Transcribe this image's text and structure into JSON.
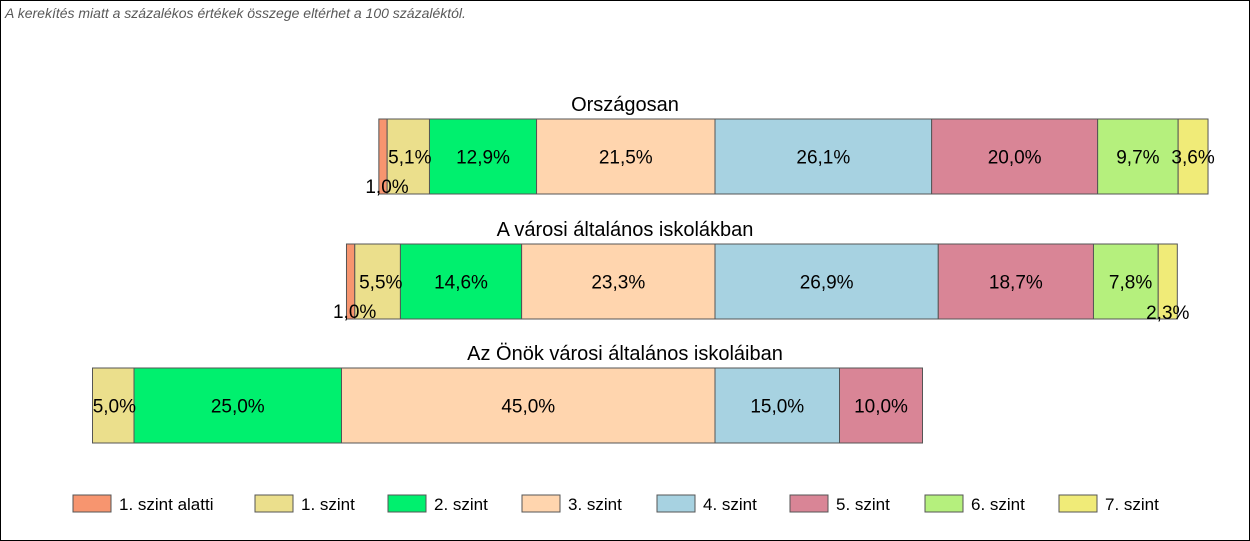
{
  "note": "A kerekítés miatt a százalékos értékek összege eltérhet a 100 százaléktól.",
  "chart_data": {
    "type": "bar",
    "stacked": true,
    "orientation": "horizontal",
    "centered_on": "2. szint / 3. szint",
    "levels": [
      {
        "name": "1. szint alatti",
        "color": "#F7956F"
      },
      {
        "name": "1. szint",
        "color": "#EBDF8C"
      },
      {
        "name": "2. szint",
        "color": "#00F06E"
      },
      {
        "name": "3. szint",
        "color": "#FFD5AE"
      },
      {
        "name": "4. szint",
        "color": "#A7D2E1"
      },
      {
        "name": "5. szint",
        "color": "#D98596"
      },
      {
        "name": "6. szint",
        "color": "#B5F07D"
      },
      {
        "name": "7. szint",
        "color": "#F0EB78"
      }
    ],
    "categories": [
      {
        "title": "Országosan",
        "values": [
          1.0,
          5.1,
          12.9,
          21.5,
          26.1,
          20.0,
          9.7,
          3.6
        ],
        "labels": [
          "1,0%",
          "5,1%",
          "12,9%",
          "21,5%",
          "26,1%",
          "20,0%",
          "9,7%",
          "3,6%"
        ]
      },
      {
        "title": "A városi általános iskolákban",
        "values": [
          1.0,
          5.5,
          14.6,
          23.3,
          26.9,
          18.7,
          7.8,
          2.3
        ],
        "labels": [
          "1,0%",
          "5,5%",
          "14,6%",
          "23,3%",
          "26,9%",
          "18,7%",
          "7,8%",
          "2,3%"
        ]
      },
      {
        "title": "Az Önök városi általános iskoláiban",
        "values": [
          0,
          5.0,
          25.0,
          45.0,
          15.0,
          10.0,
          0,
          0
        ],
        "labels": [
          "",
          "5,0%",
          "25,0%",
          "45,0%",
          "15,0%",
          "10,0%",
          "",
          ""
        ]
      }
    ],
    "legend_position": "bottom"
  }
}
